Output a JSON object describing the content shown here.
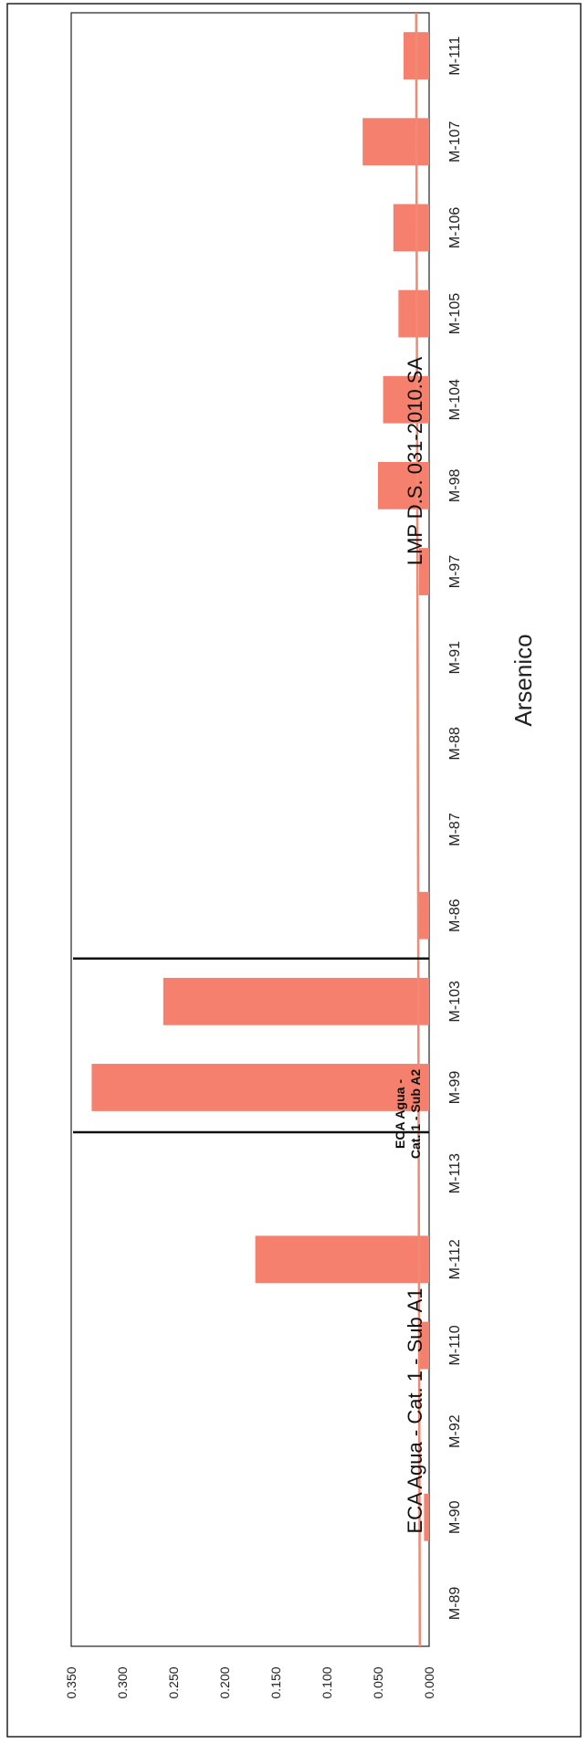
{
  "chart_data": {
    "type": "bar",
    "orientation": "horizontal",
    "title": "Arsenico",
    "xlabel": "",
    "ylabel": "",
    "ylim": [
      0,
      0.35
    ],
    "ticks": [
      "0.000",
      "0.050",
      "0.100",
      "0.150",
      "0.200",
      "0.250",
      "0.300",
      "0.350"
    ],
    "categories": [
      "M-89",
      "M-90",
      "M-92",
      "M-110",
      "M-112",
      "M-113",
      "M-99",
      "M-103",
      "M-86",
      "M-87",
      "M-88",
      "M-91",
      "M-97",
      "M-98",
      "M-104",
      "M-105",
      "M-106",
      "M-107",
      "M-111"
    ],
    "values": [
      0.0,
      0.005,
      0.0,
      0.01,
      0.17,
      0.0,
      0.33,
      0.26,
      0.01,
      0.0,
      0.0,
      0.0,
      0.01,
      0.05,
      0.045,
      0.03,
      0.035,
      0.065,
      0.025
    ],
    "bar_color": "#f4806d",
    "limit_line": {
      "value": 0.01,
      "color": "#f08a72"
    },
    "annotations": {
      "eca_a1": "ECA Agua - Cat. 1 - Sub A1",
      "eca_a2_line1": "ECA Agua -",
      "eca_a2_line2": "Cat. 1 - Sub A2",
      "lmp": "LMP D.S. 031-2010.SA"
    },
    "grid": false
  }
}
